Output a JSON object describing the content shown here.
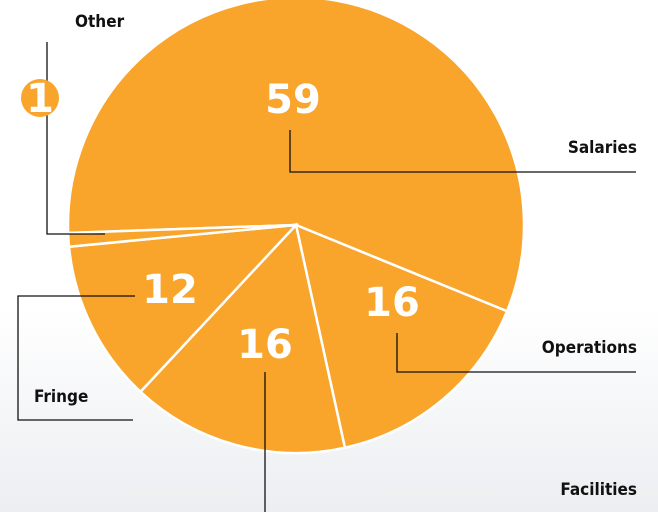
{
  "chart_data": {
    "type": "pie",
    "categories": [
      "Salaries",
      "Operations",
      "Facilities",
      "Fringe",
      "Other"
    ],
    "values": [
      59,
      16,
      16,
      12,
      1
    ],
    "color": "#f9a42b"
  }
}
